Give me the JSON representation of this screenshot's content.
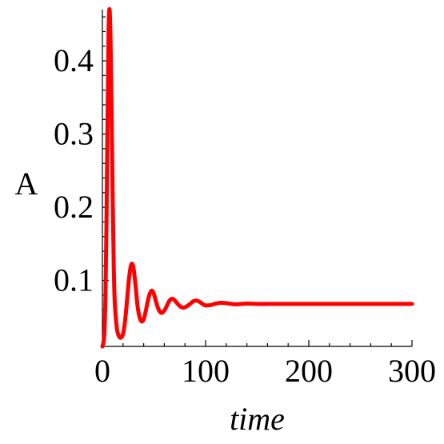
{
  "chart_data": {
    "type": "line",
    "title": "",
    "xlabel": "time",
    "ylabel": "A",
    "xlim": [
      0,
      300
    ],
    "ylim": [
      0.01,
      0.47
    ],
    "x_ticks": [
      0,
      100,
      200,
      300
    ],
    "x_tick_labels": [
      "0",
      "100",
      "200",
      "300"
    ],
    "y_ticks": [
      0.1,
      0.2,
      0.3,
      0.4
    ],
    "y_tick_labels": [
      "0.1",
      "0.2",
      "0.3",
      "0.4"
    ],
    "x_minor_step": 20,
    "y_minor_step": 0.02,
    "grid": false,
    "legend": "none",
    "series": [
      {
        "color": "#ff0000",
        "x": [
          0,
          1,
          2,
          3,
          4,
          5,
          6,
          7,
          8,
          9,
          10,
          11,
          12,
          14,
          16,
          18,
          20,
          22,
          24,
          26,
          28,
          30,
          32,
          34,
          36,
          38,
          40,
          42,
          44,
          46,
          48,
          50,
          52,
          54,
          56,
          58,
          60,
          62,
          64,
          66,
          68,
          70,
          73,
          76,
          79,
          82,
          85,
          88,
          91,
          94,
          97,
          100,
          105,
          110,
          115,
          120,
          125,
          130,
          140,
          150,
          160,
          180,
          200,
          250,
          300
        ],
        "y": [
          0.01,
          0.015,
          0.03,
          0.08,
          0.18,
          0.32,
          0.44,
          0.47,
          0.42,
          0.32,
          0.21,
          0.12,
          0.07,
          0.035,
          0.024,
          0.022,
          0.027,
          0.045,
          0.075,
          0.105,
          0.122,
          0.118,
          0.095,
          0.066,
          0.05,
          0.044,
          0.047,
          0.058,
          0.072,
          0.082,
          0.086,
          0.081,
          0.071,
          0.062,
          0.057,
          0.056,
          0.059,
          0.064,
          0.07,
          0.074,
          0.075,
          0.073,
          0.068,
          0.064,
          0.063,
          0.065,
          0.068,
          0.0715,
          0.0725,
          0.071,
          0.068,
          0.066,
          0.0665,
          0.0685,
          0.0695,
          0.069,
          0.068,
          0.0675,
          0.0685,
          0.068,
          0.068,
          0.068,
          0.068,
          0.068,
          0.068
        ]
      }
    ]
  }
}
